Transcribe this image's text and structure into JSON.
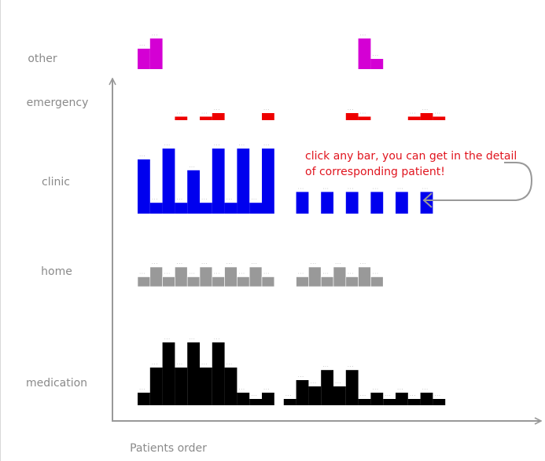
{
  "chart_data": {
    "type": "bar",
    "xlabel": "Patients order",
    "ylabel": "",
    "annotation": [
      "click any bar, you can get in the detail",
      "of corresponding patient!"
    ],
    "colors": {
      "other": "#d400d4",
      "emergency": "#ee0000",
      "clinic": "#0000ee",
      "home": "#999999",
      "medication": "#000000",
      "axis": "#999999"
    },
    "value_label": "...",
    "rows": [
      {
        "name": "other",
        "label": "other",
        "values": [
          {
            "x": 1,
            "v": 2
          },
          {
            "x": 2,
            "v": 3
          },
          {
            "x": 18,
            "v": 3
          },
          {
            "x": 19,
            "v": 1
          }
        ]
      },
      {
        "name": "emergency",
        "label": "emergency",
        "values": [
          {
            "x": 4,
            "v": 1
          },
          {
            "x": 6,
            "v": 1
          },
          {
            "x": 7,
            "v": 2
          },
          {
            "x": 11,
            "v": 2
          },
          {
            "x": 17,
            "v": 2
          },
          {
            "x": 18,
            "v": 1
          },
          {
            "x": 22,
            "v": 1
          },
          {
            "x": 23,
            "v": 2
          },
          {
            "x": 24,
            "v": 1
          }
        ]
      },
      {
        "name": "clinic",
        "label": "clinic",
        "values": [
          {
            "x": 1,
            "v": 5
          },
          {
            "x": 2,
            "v": 1
          },
          {
            "x": 3,
            "v": 6
          },
          {
            "x": 4,
            "v": 1
          },
          {
            "x": 5,
            "v": 4
          },
          {
            "x": 6,
            "v": 1
          },
          {
            "x": 7,
            "v": 6
          },
          {
            "x": 8,
            "v": 1
          },
          {
            "x": 9,
            "v": 6
          },
          {
            "x": 10,
            "v": 1
          },
          {
            "x": 11,
            "v": 6
          },
          {
            "x": 13,
            "v": 2
          },
          {
            "x": 15,
            "v": 2
          },
          {
            "x": 17,
            "v": 2
          },
          {
            "x": 19,
            "v": 2
          },
          {
            "x": 21,
            "v": 2
          },
          {
            "x": 23,
            "v": 2
          }
        ]
      },
      {
        "name": "home",
        "label": "home",
        "values": [
          {
            "x": 1,
            "v": 1
          },
          {
            "x": 2,
            "v": 2
          },
          {
            "x": 3,
            "v": 1
          },
          {
            "x": 4,
            "v": 2
          },
          {
            "x": 5,
            "v": 1
          },
          {
            "x": 6,
            "v": 2
          },
          {
            "x": 7,
            "v": 1
          },
          {
            "x": 8,
            "v": 2
          },
          {
            "x": 9,
            "v": 1
          },
          {
            "x": 10,
            "v": 2
          },
          {
            "x": 11,
            "v": 1
          },
          {
            "x": 13,
            "v": 1
          },
          {
            "x": 14,
            "v": 2
          },
          {
            "x": 15,
            "v": 1
          },
          {
            "x": 16,
            "v": 2
          },
          {
            "x": 17,
            "v": 1
          },
          {
            "x": 18,
            "v": 2
          },
          {
            "x": 19,
            "v": 1
          }
        ]
      },
      {
        "name": "medication",
        "label": "medication",
        "values": [
          {
            "x": 1,
            "v": 1
          },
          {
            "x": 2,
            "v": 3
          },
          {
            "x": 3,
            "v": 5
          },
          {
            "x": 4,
            "v": 3
          },
          {
            "x": 5,
            "v": 5
          },
          {
            "x": 6,
            "v": 3
          },
          {
            "x": 7,
            "v": 5
          },
          {
            "x": 8,
            "v": 3
          },
          {
            "x": 9,
            "v": 1
          },
          {
            "x": 10,
            "v": 0.5
          },
          {
            "x": 11,
            "v": 1
          },
          {
            "x": 12,
            "v": 0.5
          },
          {
            "x": 13,
            "v": 2
          },
          {
            "x": 14,
            "v": 1.5
          },
          {
            "x": 15,
            "v": 2.8
          },
          {
            "x": 16,
            "v": 1.5
          },
          {
            "x": 17,
            "v": 2.8
          },
          {
            "x": 18,
            "v": 0.5
          },
          {
            "x": 19,
            "v": 1
          },
          {
            "x": 20,
            "v": 0.5
          },
          {
            "x": 21,
            "v": 1
          },
          {
            "x": 22,
            "v": 0.5
          },
          {
            "x": 23,
            "v": 1
          },
          {
            "x": 24,
            "v": 0.5
          }
        ]
      }
    ]
  }
}
